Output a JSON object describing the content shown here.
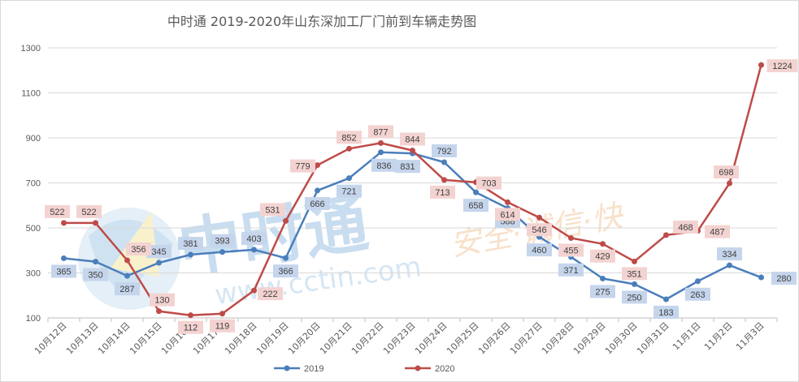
{
  "chart_data": {
    "type": "line",
    "title": "中时通 2019-2020年山东深加工厂门前到车辆走势图",
    "xlabel": "",
    "ylabel": "",
    "ylim": [
      100,
      1300
    ],
    "yticks": [
      100,
      300,
      500,
      700,
      900,
      1100,
      1300
    ],
    "grid": true,
    "legend_position": "bottom",
    "categories": [
      "10月12日",
      "10月13日",
      "10月14日",
      "10月15日",
      "10月16日",
      "10月17日",
      "10月18日",
      "10月19日",
      "10月20日",
      "10月21日",
      "10月22日",
      "10月23日",
      "10月24日",
      "10月25日",
      "10月26日",
      "10月27日",
      "10月28日",
      "10月29日",
      "10月30日",
      "10月31日",
      "11月1日",
      "11月2日",
      "11月3日"
    ],
    "series": [
      {
        "name": "2019",
        "color": "#4a7ebb",
        "label_bg": "#c5d5ec",
        "values": [
          365,
          350,
          287,
          345,
          381,
          393,
          403,
          366,
          666,
          721,
          836,
          831,
          792,
          658,
          588,
          460,
          371,
          275,
          250,
          183,
          263,
          334,
          280
        ],
        "labels": [
          "365",
          "350",
          "287",
          "345",
          "381",
          "393",
          "403",
          "366",
          "666",
          "721",
          "836",
          "831",
          "792",
          "658",
          "588",
          "460",
          "371",
          "275",
          "250",
          "183",
          "263",
          "334",
          "280"
        ]
      },
      {
        "name": "2020",
        "color": "#be4b48",
        "label_bg": "#f3d3d1",
        "values": [
          522,
          522,
          356,
          130,
          112,
          119,
          222,
          531,
          779,
          852,
          877,
          844,
          713,
          703,
          614,
          546,
          455,
          429,
          351,
          468,
          487,
          698,
          1224
        ],
        "labels": [
          "522",
          "522",
          "356",
          "130",
          "112",
          "119",
          "222",
          "531",
          "779",
          "852",
          "877",
          "844",
          "713",
          "703",
          "614",
          "546",
          "455",
          "429",
          "351",
          "468",
          "487",
          "698",
          "1224"
        ]
      }
    ]
  },
  "watermark": {
    "brand_text": "中时通",
    "url_text": "www.cctin.com",
    "slogan_text": "安全·诚信·快"
  }
}
